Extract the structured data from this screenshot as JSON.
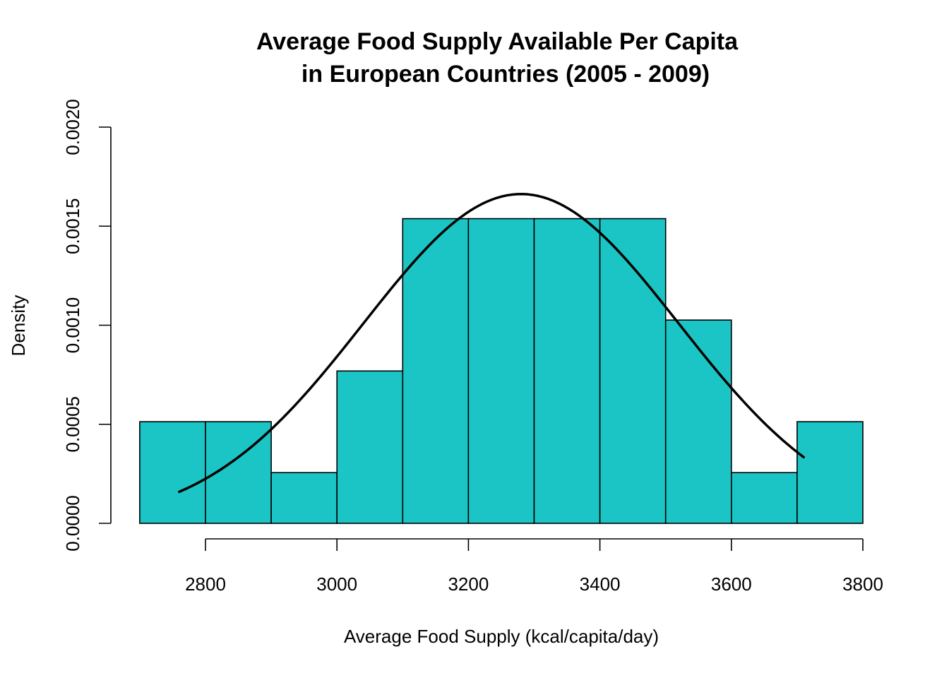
{
  "chart_data": {
    "type": "bar",
    "subtype": "histogram",
    "title_lines": [
      "Average Food Supply Available Per Capita",
      "in European Countries (2005 - 2009)"
    ],
    "xlabel": "Average Food Supply (kcal/capita/day)",
    "ylabel": "Density",
    "xlim": [
      2700,
      3800
    ],
    "ylim": [
      0,
      0.002
    ],
    "x_ticks": [
      "2800",
      "3000",
      "3200",
      "3400",
      "3600",
      "3800"
    ],
    "y_ticks": [
      "0.0000",
      "0.0005",
      "0.0010",
      "0.0015",
      "0.0020"
    ],
    "bin_width": 100,
    "bins": [
      {
        "start": 2700,
        "end": 2800,
        "density": 0.000513
      },
      {
        "start": 2800,
        "end": 2900,
        "density": 0.000513
      },
      {
        "start": 2900,
        "end": 3000,
        "density": 0.000256
      },
      {
        "start": 3000,
        "end": 3100,
        "density": 0.000769
      },
      {
        "start": 3100,
        "end": 3200,
        "density": 0.001538
      },
      {
        "start": 3200,
        "end": 3300,
        "density": 0.001538
      },
      {
        "start": 3300,
        "end": 3400,
        "density": 0.001538
      },
      {
        "start": 3400,
        "end": 3500,
        "density": 0.001538
      },
      {
        "start": 3500,
        "end": 3600,
        "density": 0.001026
      },
      {
        "start": 3600,
        "end": 3700,
        "density": 0.000256
      },
      {
        "start": 3700,
        "end": 3800,
        "density": 0.000513
      }
    ],
    "curve": {
      "type": "normal-density",
      "mean": 3280,
      "sd": 240,
      "x_range": [
        2760,
        3710
      ]
    },
    "colors": {
      "bar_fill": "#1CC5C5",
      "bar_stroke": "#000000",
      "curve": "#000000"
    },
    "grid": false,
    "legend": "none"
  }
}
